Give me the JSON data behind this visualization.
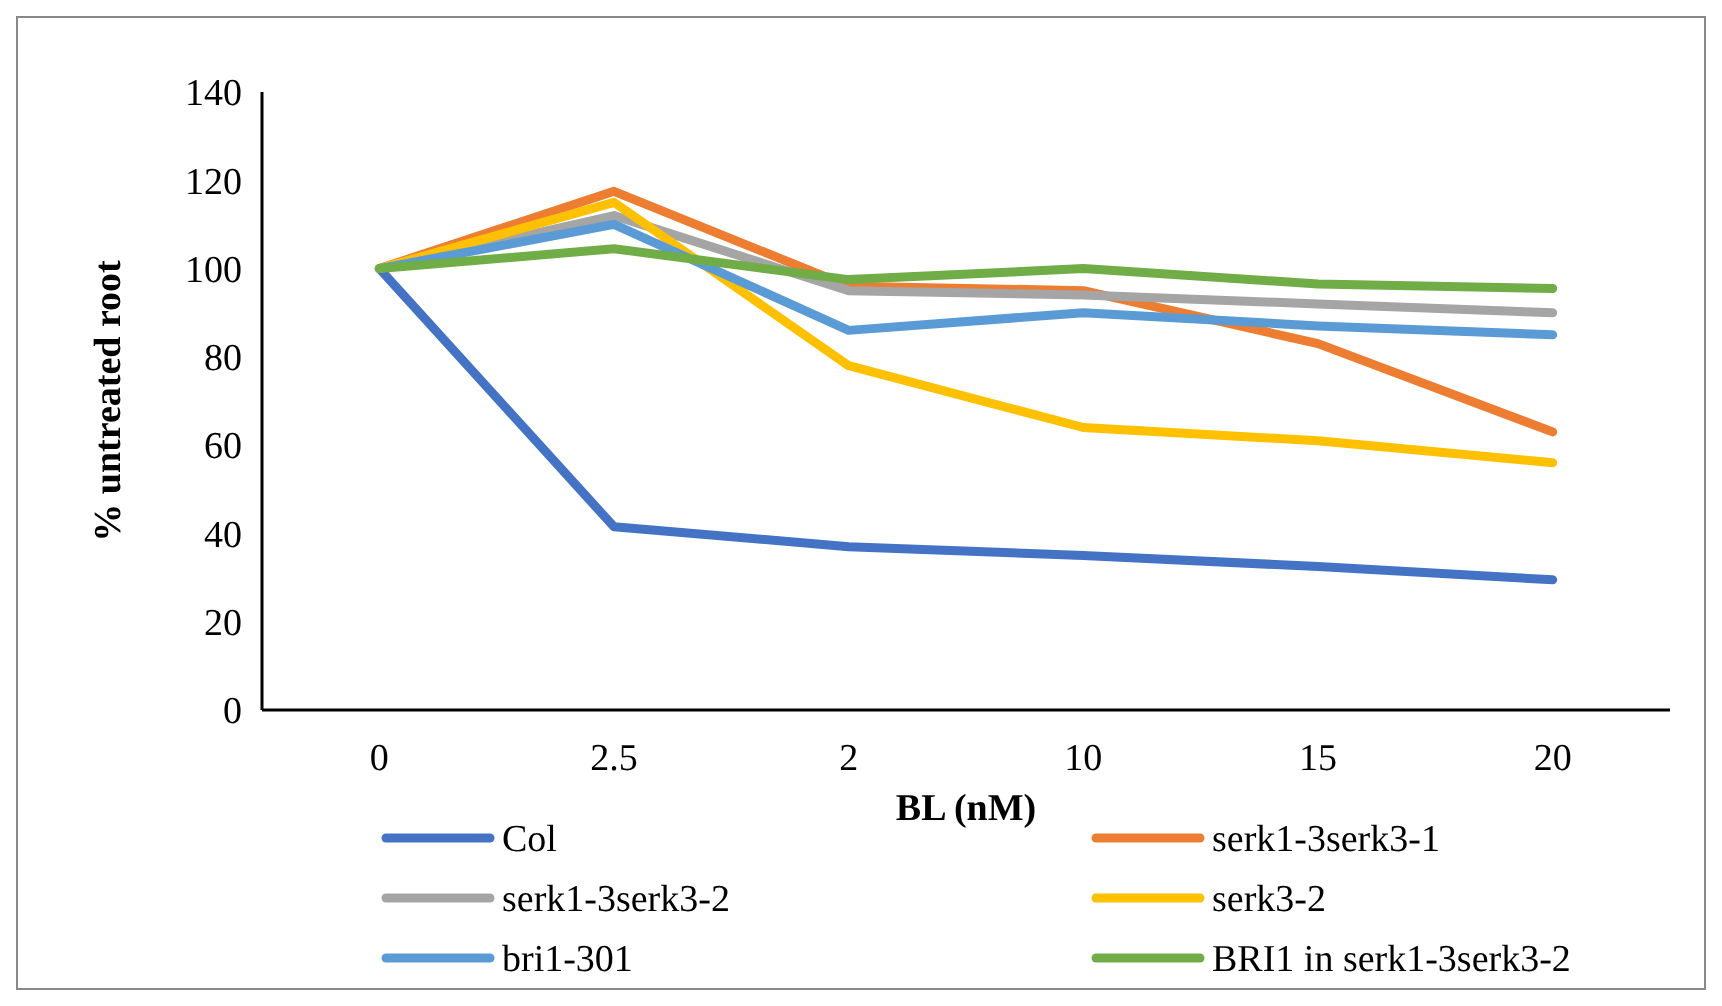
{
  "chart_data": {
    "type": "line",
    "xlabel": "BL (nM)",
    "ylabel": "% untreated root",
    "categories": [
      "0",
      "2.5",
      "2",
      "10",
      "15",
      "20"
    ],
    "ylim": [
      0,
      140
    ],
    "yticks": [
      0,
      20,
      40,
      60,
      80,
      100,
      120,
      140
    ],
    "grid": false,
    "legend": "bottom",
    "marker": "none",
    "line_style": "solid",
    "series": [
      {
        "name": "Col",
        "color": "#4472c4",
        "values": [
          100,
          41.5,
          37,
          35,
          32.5,
          29.5
        ]
      },
      {
        "name": "serk1-3serk3-1",
        "color": "#ed7d31",
        "values": [
          100,
          117.5,
          96,
          95,
          83,
          63
        ]
      },
      {
        "name": "serk1-3serk3-2",
        "color": "#a5a5a5",
        "values": [
          100,
          112,
          95,
          94,
          92,
          90
        ]
      },
      {
        "name": "serk3-2",
        "color": "#ffc000",
        "values": [
          100,
          115,
          78,
          64,
          61,
          56
        ]
      },
      {
        "name": "bri1-301",
        "color": "#5b9bd5",
        "values": [
          100,
          110,
          86,
          90,
          87,
          85
        ]
      },
      {
        "name": "BRI1 in serk1-3serk3-2",
        "color": "#70ad47",
        "values": [
          100,
          104.5,
          97.5,
          100,
          96.5,
          95.5
        ]
      }
    ]
  }
}
